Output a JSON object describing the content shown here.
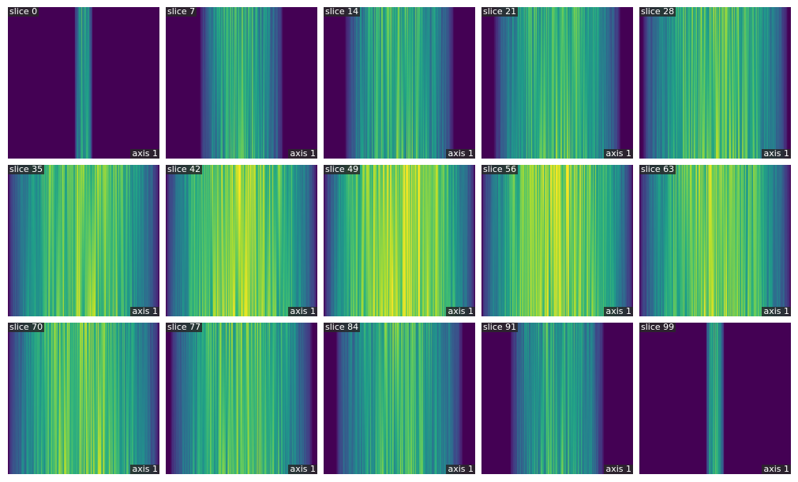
{
  "axis_label": "axis 1",
  "panels": [
    {
      "title": "slice 0",
      "width": 0.12,
      "brightness": 0.45
    },
    {
      "title": "slice 7",
      "width": 0.55,
      "brightness": 0.5
    },
    {
      "title": "slice 14",
      "width": 0.72,
      "brightness": 0.55
    },
    {
      "title": "slice 21",
      "width": 0.84,
      "brightness": 0.6
    },
    {
      "title": "slice 28",
      "width": 0.96,
      "brightness": 0.66
    },
    {
      "title": "slice 35",
      "width": 1.0,
      "brightness": 0.72
    },
    {
      "title": "slice 42",
      "width": 1.0,
      "brightness": 0.8
    },
    {
      "title": "slice 49",
      "width": 1.0,
      "brightness": 0.86
    },
    {
      "title": "slice 56",
      "width": 1.0,
      "brightness": 0.82
    },
    {
      "title": "slice 63",
      "width": 1.0,
      "brightness": 0.76
    },
    {
      "title": "slice 70",
      "width": 1.0,
      "brightness": 0.7
    },
    {
      "title": "slice 77",
      "width": 0.94,
      "brightness": 0.64
    },
    {
      "title": "slice 84",
      "width": 0.84,
      "brightness": 0.58
    },
    {
      "title": "slice 91",
      "width": 0.62,
      "brightness": 0.5
    },
    {
      "title": "slice 99",
      "width": 0.12,
      "brightness": 0.45
    }
  ]
}
